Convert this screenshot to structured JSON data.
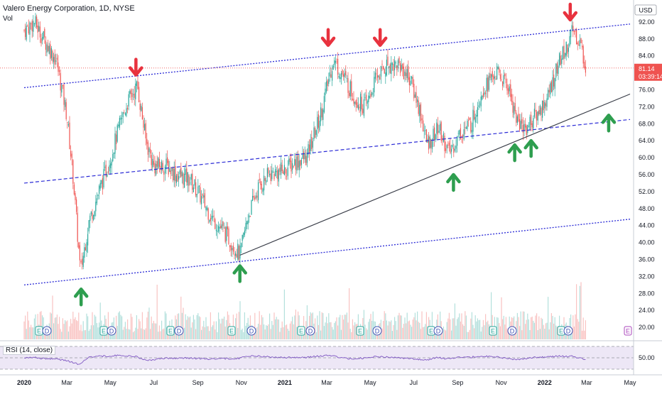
{
  "header": {
    "title": "Valero Energy Corporation, 1D, NYSE",
    "volume_label": "Vol"
  },
  "currency": "USD",
  "price_tag": {
    "price": "81.14",
    "countdown": "03:39:14",
    "color": "#ef5350"
  },
  "rsi": {
    "label": "RSI (14, close)",
    "value_tick": "50.00"
  },
  "colors": {
    "up": "#26a69a",
    "down": "#ef5350",
    "channel": "#2b2bd6",
    "trend": "#363a45",
    "arrow_up": "#2e9e4f",
    "arrow_down": "#e8323e",
    "rsi_line": "#7e57c2",
    "rsi_band": "#ede7f6"
  },
  "chart_data": {
    "type": "candlestick",
    "y_axis": {
      "min": 16,
      "max": 96,
      "ticks": [
        "92.00",
        "88.00",
        "84.00",
        "80.00",
        "76.00",
        "72.00",
        "68.00",
        "64.00",
        "60.00",
        "56.00",
        "52.00",
        "48.00",
        "44.00",
        "40.00",
        "36.00",
        "32.00",
        "28.00",
        "24.00",
        "20.00"
      ]
    },
    "x_axis": {
      "labels": [
        "2020",
        "Mar",
        "May",
        "Jul",
        "Sep",
        "Nov",
        "2021",
        "Mar",
        "May",
        "Jul",
        "Sep",
        "Nov",
        "2022",
        "Mar",
        "May"
      ]
    },
    "price_path": [
      [
        "2020-01-01",
        90
      ],
      [
        "2020-01-15",
        92
      ],
      [
        "2020-02-01",
        87
      ],
      [
        "2020-02-15",
        83
      ],
      [
        "2020-03-01",
        70
      ],
      [
        "2020-03-10",
        55
      ],
      [
        "2020-03-20",
        33
      ],
      [
        "2020-04-01",
        45
      ],
      [
        "2020-04-15",
        52
      ],
      [
        "2020-05-01",
        60
      ],
      [
        "2020-05-15",
        68
      ],
      [
        "2020-05-25",
        73
      ],
      [
        "2020-06-08",
        77
      ],
      [
        "2020-06-20",
        64
      ],
      [
        "2020-07-01",
        58
      ],
      [
        "2020-07-20",
        58
      ],
      [
        "2020-08-01",
        56
      ],
      [
        "2020-08-20",
        55
      ],
      [
        "2020-09-01",
        52
      ],
      [
        "2020-09-20",
        46
      ],
      [
        "2020-10-10",
        42
      ],
      [
        "2020-10-30",
        37
      ],
      [
        "2020-11-10",
        46
      ],
      [
        "2020-11-25",
        53
      ],
      [
        "2020-12-10",
        56
      ],
      [
        "2020-12-31",
        57
      ],
      [
        "2021-01-15",
        59
      ],
      [
        "2021-02-01",
        60
      ],
      [
        "2021-02-20",
        70
      ],
      [
        "2021-03-10",
        83
      ],
      [
        "2021-03-25",
        79
      ],
      [
        "2021-04-10",
        74
      ],
      [
        "2021-04-25",
        72
      ],
      [
        "2021-05-10",
        79
      ],
      [
        "2021-05-25",
        82
      ],
      [
        "2021-06-10",
        82
      ],
      [
        "2021-06-25",
        79
      ],
      [
        "2021-07-10",
        71
      ],
      [
        "2021-07-20",
        63
      ],
      [
        "2021-08-05",
        67
      ],
      [
        "2021-08-20",
        61
      ],
      [
        "2021-09-05",
        66
      ],
      [
        "2021-09-20",
        68
      ],
      [
        "2021-10-05",
        76
      ],
      [
        "2021-10-25",
        80
      ],
      [
        "2021-11-10",
        77
      ],
      [
        "2021-11-25",
        68
      ],
      [
        "2021-12-05",
        67
      ],
      [
        "2021-12-20",
        70
      ],
      [
        "2022-01-05",
        74
      ],
      [
        "2022-01-20",
        82
      ],
      [
        "2022-02-01",
        86
      ],
      [
        "2022-02-10",
        90
      ],
      [
        "2022-02-20",
        87
      ],
      [
        "2022-02-28",
        81
      ]
    ],
    "annotations": {
      "upper_channel": {
        "from": [
          "2020-01-01",
          76.5
        ],
        "to": [
          "2022-05-01",
          91.5
        ]
      },
      "middle_channel": {
        "from": [
          "2020-01-01",
          54
        ],
        "to": [
          "2022-05-01",
          69
        ]
      },
      "lower_channel": {
        "from": [
          "2020-01-01",
          30
        ],
        "to": [
          "2022-05-01",
          45.5
        ]
      },
      "trendline": {
        "from": [
          "2020-10-30",
          37
        ],
        "to": [
          "2022-05-01",
          75
        ]
      },
      "down_arrows": [
        [
          "2020-06-06",
          81
        ],
        [
          "2021-03-03",
          88
        ],
        [
          "2021-05-15",
          88
        ],
        [
          "2022-02-06",
          94
        ]
      ],
      "up_arrows": [
        [
          "2020-03-21",
          27.5
        ],
        [
          "2020-10-30",
          33
        ],
        [
          "2021-08-26",
          54.5
        ],
        [
          "2021-11-20",
          61.5
        ],
        [
          "2021-12-13",
          62.5
        ],
        [
          "2022-04-01",
          68.5
        ]
      ]
    },
    "events": [
      "E",
      "D",
      "E",
      "D",
      "E",
      "D",
      "E",
      "D",
      "E",
      "D",
      "E",
      "D",
      "E",
      "D",
      "E",
      "D",
      "E",
      "D"
    ]
  }
}
